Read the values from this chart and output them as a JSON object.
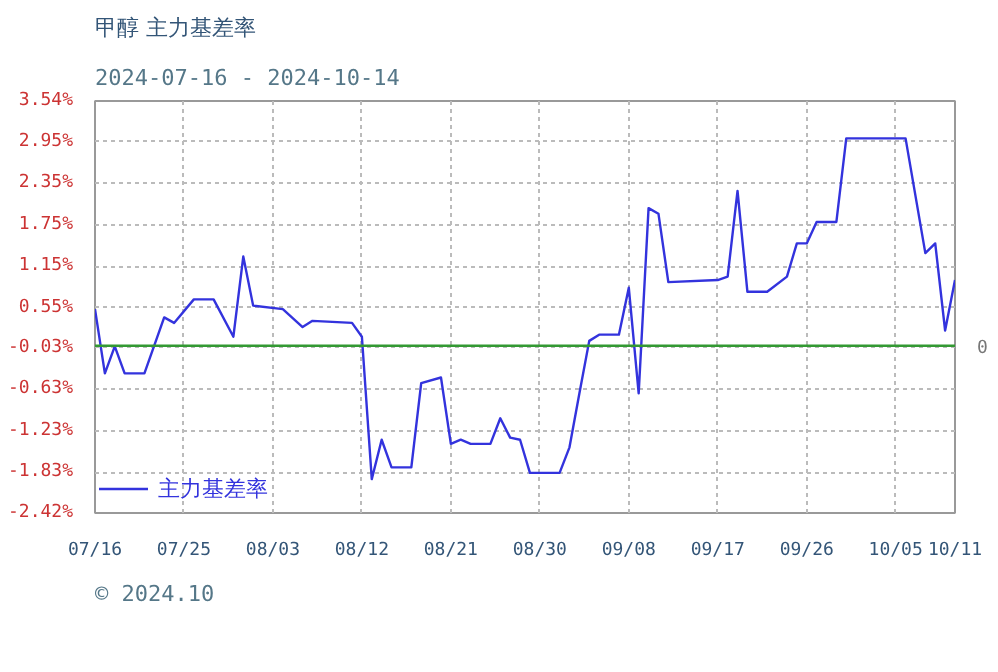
{
  "chart_data": {
    "type": "line",
    "title": "甲醇  主力基差率",
    "subtitle": "2024-07-16 - 2024-10-14",
    "x": [
      "2024-07-16",
      "2024-07-17",
      "2024-07-18",
      "2024-07-19",
      "2024-07-21",
      "2024-07-23",
      "2024-07-24",
      "2024-07-26",
      "2024-07-28",
      "2024-07-30",
      "2024-07-31",
      "2024-08-01",
      "2024-08-04",
      "2024-08-06",
      "2024-08-07",
      "2024-08-11",
      "2024-08-12",
      "2024-08-13",
      "2024-08-14",
      "2024-08-15",
      "2024-08-17",
      "2024-08-18",
      "2024-08-20",
      "2024-08-21",
      "2024-08-22",
      "2024-08-23",
      "2024-08-25",
      "2024-08-26",
      "2024-08-27",
      "2024-08-28",
      "2024-08-29",
      "2024-09-01",
      "2024-09-02",
      "2024-09-03",
      "2024-09-04",
      "2024-09-05",
      "2024-09-07",
      "2024-09-08",
      "2024-09-09",
      "2024-09-10",
      "2024-09-11",
      "2024-09-12",
      "2024-09-17",
      "2024-09-18",
      "2024-09-19",
      "2024-09-20",
      "2024-09-22",
      "2024-09-24",
      "2024-09-25",
      "2024-09-26",
      "2024-09-27",
      "2024-09-29",
      "2024-09-30",
      "2024-10-06",
      "2024-10-08",
      "2024-10-09",
      "2024-10-10",
      "2024-10-11"
    ],
    "series": [
      {
        "name": "主力基差率",
        "color": "#3333dd",
        "values": [
          0.53,
          -0.4,
          -0.01,
          -0.4,
          -0.4,
          0.41,
          0.33,
          0.67,
          0.67,
          0.13,
          1.29,
          0.58,
          0.53,
          0.27,
          0.36,
          0.33,
          0.13,
          -1.93,
          -1.36,
          -1.76,
          -1.76,
          -0.54,
          -0.46,
          -1.42,
          -1.36,
          -1.42,
          -1.42,
          -1.05,
          -1.33,
          -1.36,
          -1.84,
          -1.84,
          -1.47,
          -0.69,
          0.07,
          0.16,
          0.16,
          0.84,
          -0.69,
          1.99,
          1.91,
          0.92,
          0.95,
          1.0,
          2.24,
          0.78,
          0.78,
          1.0,
          1.48,
          1.48,
          1.79,
          1.79,
          3.0,
          3.0,
          1.34,
          1.48,
          0.22,
          0.95
        ]
      }
    ],
    "xlim": [
      "2024-07-16",
      "2024-10-11"
    ],
    "xticks": [
      {
        "value": "2024-07-16",
        "label": "07/16"
      },
      {
        "value": "2024-07-25",
        "label": "07/25"
      },
      {
        "value": "2024-08-03",
        "label": "08/03"
      },
      {
        "value": "2024-08-12",
        "label": "08/12"
      },
      {
        "value": "2024-08-21",
        "label": "08/21"
      },
      {
        "value": "2024-08-30",
        "label": "08/30"
      },
      {
        "value": "2024-09-08",
        "label": "09/08"
      },
      {
        "value": "2024-09-17",
        "label": "09/17"
      },
      {
        "value": "2024-09-26",
        "label": "09/26"
      },
      {
        "value": "2024-10-05",
        "label": "10/05"
      },
      {
        "value": "2024-10-11",
        "label": "10/11"
      }
    ],
    "ylim": [
      -2.42,
      3.54
    ],
    "yticks": [
      {
        "value": -2.42,
        "label": "-2.42%"
      },
      {
        "value": -1.83,
        "label": "-1.83%"
      },
      {
        "value": -1.23,
        "label": "-1.23%"
      },
      {
        "value": -0.63,
        "label": "-0.63%"
      },
      {
        "value": -0.03,
        "label": "-0.03%"
      },
      {
        "value": 0.55,
        "label": "0.55%"
      },
      {
        "value": 1.15,
        "label": "1.15%"
      },
      {
        "value": 1.75,
        "label": "1.75%"
      },
      {
        "value": 2.35,
        "label": "2.35%"
      },
      {
        "value": 2.95,
        "label": "2.95%"
      },
      {
        "value": 3.54,
        "label": "3.54%"
      }
    ],
    "ref_lines": [
      {
        "axis": "y",
        "value": 0,
        "label": "0",
        "color": "#339933"
      }
    ],
    "grid": true,
    "legend": "bottom left",
    "line_style": "solid",
    "marker": "none",
    "annotations": [
      "© 2024.10"
    ]
  }
}
